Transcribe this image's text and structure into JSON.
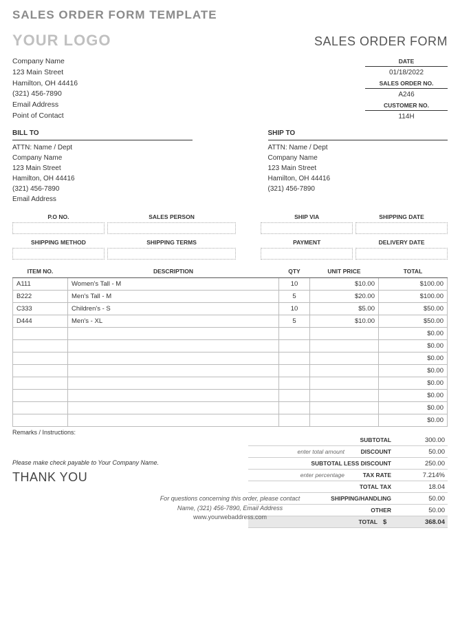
{
  "page_title": "SALES ORDER FORM TEMPLATE",
  "logo_text": "YOUR LOGO",
  "form_title": "SALES ORDER FORM",
  "colors": {
    "heading_gray": "#8a8a8a",
    "logo_gray": "#c0c0c0",
    "border": "#bbbbbb",
    "grand_bg": "#e8e8e8"
  },
  "company": {
    "name": "Company Name",
    "street": "123 Main Street",
    "city": "Hamilton, OH 44416",
    "phone": "(321) 456-7890",
    "email": "Email Address",
    "contact": "Point of Contact"
  },
  "meta": {
    "date_label": "DATE",
    "date": "01/18/2022",
    "order_label": "SALES ORDER NO.",
    "order": "A246",
    "cust_label": "CUSTOMER NO.",
    "cust": "114H"
  },
  "bill_to_label": "BILL TO",
  "ship_to_label": "SHIP TO",
  "bill_to": {
    "attn": "ATTN: Name / Dept",
    "name": "Company Name",
    "street": "123 Main Street",
    "city": "Hamilton, OH 44416",
    "phone": "(321) 456-7890",
    "email": "Email Address"
  },
  "ship_to": {
    "attn": "ATTN: Name / Dept",
    "name": "Company Name",
    "street": "123 Main Street",
    "city": "Hamilton, OH 44416",
    "phone": "(321) 456-7890"
  },
  "fields1": {
    "po": "P.O NO.",
    "sales_person": "SALES PERSON",
    "ship_via": "SHIP VIA",
    "ship_date": "SHIPPING DATE"
  },
  "fields2": {
    "ship_method": "SHIPPING METHOD",
    "ship_terms": "SHIPPING TERMS",
    "payment": "PAYMENT",
    "delivery_date": "DELIVERY DATE"
  },
  "items_header": {
    "item_no": "ITEM NO.",
    "desc": "DESCRIPTION",
    "qty": "QTY",
    "price": "UNIT PRICE",
    "total": "TOTAL"
  },
  "col_widths": {
    "item_no": "80px",
    "desc": "auto",
    "qty": "45px",
    "price": "100px",
    "total": "100px"
  },
  "items": [
    {
      "no": "A111",
      "desc": "Women's Tall - M",
      "qty": "10",
      "price": "$10.00",
      "total": "$100.00"
    },
    {
      "no": "B222",
      "desc": "Men's Tall - M",
      "qty": "5",
      "price": "$20.00",
      "total": "$100.00"
    },
    {
      "no": "C333",
      "desc": "Children's - S",
      "qty": "10",
      "price": "$5.00",
      "total": "$50.00"
    },
    {
      "no": "D444",
      "desc": "Men's - XL",
      "qty": "5",
      "price": "$10.00",
      "total": "$50.00"
    },
    {
      "no": "",
      "desc": "",
      "qty": "",
      "price": "",
      "total": "$0.00"
    },
    {
      "no": "",
      "desc": "",
      "qty": "",
      "price": "",
      "total": "$0.00"
    },
    {
      "no": "",
      "desc": "",
      "qty": "",
      "price": "",
      "total": "$0.00"
    },
    {
      "no": "",
      "desc": "",
      "qty": "",
      "price": "",
      "total": "$0.00"
    },
    {
      "no": "",
      "desc": "",
      "qty": "",
      "price": "",
      "total": "$0.00"
    },
    {
      "no": "",
      "desc": "",
      "qty": "",
      "price": "",
      "total": "$0.00"
    },
    {
      "no": "",
      "desc": "",
      "qty": "",
      "price": "",
      "total": "$0.00"
    },
    {
      "no": "",
      "desc": "",
      "qty": "",
      "price": "",
      "total": "$0.00"
    }
  ],
  "remarks_label": "Remarks / Instructions:",
  "totals": {
    "subtotal_lbl": "SUBTOTAL",
    "subtotal": "300.00",
    "discount_hint": "enter total amount",
    "discount_lbl": "DISCOUNT",
    "discount": "50.00",
    "less_lbl": "SUBTOTAL LESS DISCOUNT",
    "less": "250.00",
    "rate_hint": "enter percentage",
    "rate_lbl": "TAX RATE",
    "rate": "7.214%",
    "tax_lbl": "TOTAL TAX",
    "tax": "18.04",
    "ship_lbl": "SHIPPING/HANDLING",
    "ship": "50.00",
    "other_lbl": "OTHER",
    "other": "50.00",
    "total_lbl": "TOTAL",
    "currency": "$",
    "total": "368.04"
  },
  "payable": "Please make check payable to Your Company Name.",
  "thanks": "THANK YOU",
  "footer": {
    "line1": "For questions concerning this order, please contact",
    "line2": "Name, (321) 456-7890, Email Address",
    "web": "www.yourwebaddress.com"
  }
}
